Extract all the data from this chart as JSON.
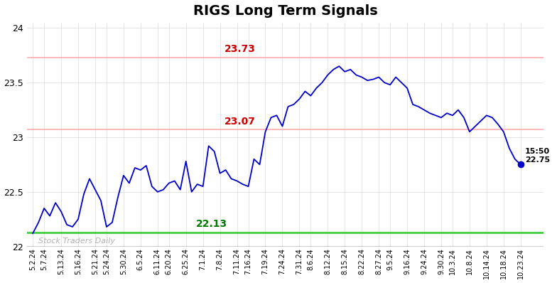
{
  "title": "RIGS Long Term Signals",
  "title_fontsize": 14,
  "title_fontweight": "bold",
  "watermark": "Stock Traders Daily",
  "hline_upper": 23.73,
  "hline_lower": 23.07,
  "hline_green": 22.13,
  "hline_upper_color": "#ffbbbb",
  "hline_lower_color": "#ffbbbb",
  "hline_green_color": "#44cc44",
  "label_upper": "23.73",
  "label_lower": "23.07",
  "label_green": "22.13",
  "label_upper_color": "#cc0000",
  "label_lower_color": "#cc0000",
  "label_green_color": "#007700",
  "last_time": "15:50",
  "last_price": "22.75",
  "last_dot_color": "#0000cc",
  "line_color": "#0000cc",
  "xlabels": [
    "5.2.24",
    "5.7.24",
    "5.13.24",
    "5.16.24",
    "5.21.24",
    "5.24.24",
    "5.30.24",
    "6.5.24",
    "6.11.24",
    "6.20.24",
    "6.25.24",
    "7.1.24",
    "7.8.24",
    "7.11.24",
    "7.16.24",
    "7.19.24",
    "7.24.24",
    "7.31.24",
    "8.6.24",
    "8.12.24",
    "8.15.24",
    "8.22.24",
    "8.27.24",
    "9.5.24",
    "9.16.24",
    "9.24.24",
    "9.30.24",
    "10.3.24",
    "10.8.24",
    "10.14.24",
    "10.18.24",
    "10.23.24"
  ],
  "ylim_min": 22.0,
  "ylim_max": 24.05,
  "yticks": [
    22,
    22.5,
    23,
    23.5,
    24
  ],
  "yticklabels": [
    "22",
    "22.5",
    "23",
    "23.5",
    "24"
  ],
  "bg_color": "#ffffff",
  "grid_color": "#e0e0e0",
  "y_data": [
    22.12,
    22.22,
    22.35,
    22.28,
    22.4,
    22.32,
    22.2,
    22.18,
    22.25,
    22.48,
    22.62,
    22.52,
    22.42,
    22.18,
    22.22,
    22.45,
    22.65,
    22.58,
    22.72,
    22.7,
    22.74,
    22.55,
    22.5,
    22.52,
    22.58,
    22.6,
    22.52,
    22.78,
    22.5,
    22.57,
    22.55,
    22.92,
    22.87,
    22.67,
    22.7,
    22.62,
    22.6,
    22.57,
    22.55,
    22.8,
    22.75,
    23.05,
    23.18,
    23.2,
    23.1,
    23.28,
    23.3,
    23.35,
    23.42,
    23.38,
    23.45,
    23.5,
    23.57,
    23.62,
    23.65,
    23.6,
    23.62,
    23.57,
    23.55,
    23.52,
    23.53,
    23.55,
    23.5,
    23.48,
    23.55,
    23.5,
    23.45,
    23.3,
    23.28,
    23.25,
    23.22,
    23.2,
    23.18,
    23.22,
    23.2,
    23.25,
    23.18,
    23.05,
    23.1,
    23.15,
    23.2,
    23.18,
    23.12,
    23.05,
    22.9,
    22.8,
    22.75
  ]
}
